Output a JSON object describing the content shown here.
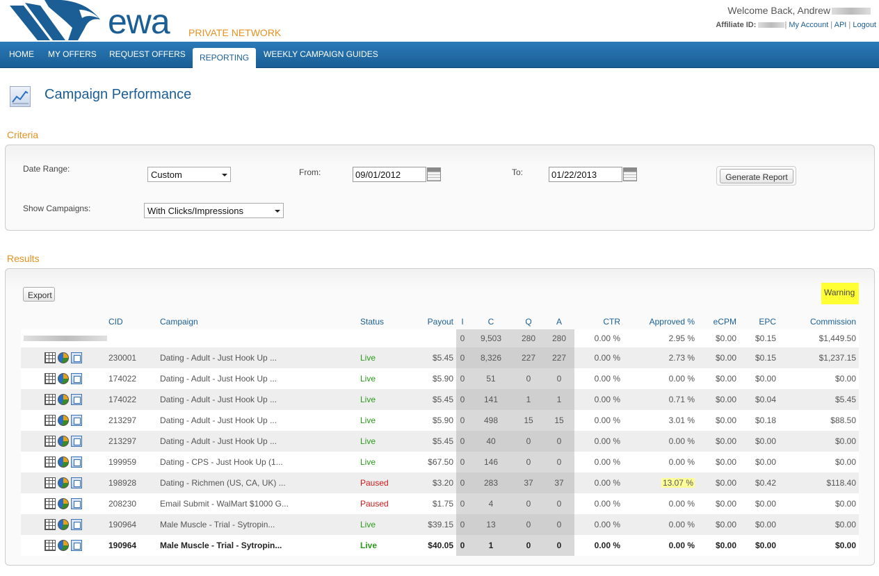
{
  "header": {
    "logo_text": "ewa",
    "logo_sub": "PRIVATE NETWORK",
    "welcome": "Welcome Back, Andrew",
    "affiliate_label": "Affiliate ID:",
    "links": [
      "My Account",
      "API",
      "Logout"
    ]
  },
  "nav": [
    "HOME",
    "MY OFFERS",
    "REQUEST OFFERS",
    "REPORTING",
    "WEEKLY CAMPAIGN GUIDES"
  ],
  "page_title": "Campaign Performance",
  "criteria": {
    "section": "Criteria",
    "date_range_label": "Date Range:",
    "date_range_value": "Custom",
    "from_label": "From:",
    "from_value": "09/01/2012",
    "to_label": "To:",
    "to_value": "01/22/2013",
    "generate_label": "Generate Report",
    "show_label": "Show Campaigns:",
    "show_value": "With Clicks/Impressions"
  },
  "results": {
    "section": "Results",
    "export_label": "Export",
    "warning_label": "Warning",
    "columns": [
      "CID",
      "Campaign",
      "Status",
      "Payout",
      "I",
      "C",
      "Q",
      "A",
      "CTR",
      "Approved %",
      "eCPM",
      "EPC",
      "Commission"
    ],
    "total": {
      "i": "0",
      "c": "9,503",
      "q": "280",
      "a": "280",
      "ctr": "0.00 %",
      "approved": "2.95 %",
      "ecpm": "$0.00",
      "epc": "$0.15",
      "commission": "$1,449.50"
    },
    "rows": [
      {
        "cid": "230001",
        "campaign": "Dating - Adult - Just Hook Up ...",
        "status": "Live",
        "payout": "$5.45",
        "i": "0",
        "c": "8,326",
        "q": "227",
        "a": "227",
        "ctr": "0.00 %",
        "approved": "2.73 %",
        "ecpm": "$0.00",
        "epc": "$0.15",
        "commission": "$1,237.15"
      },
      {
        "cid": "174022",
        "campaign": "Dating - Adult - Just Hook Up ...",
        "status": "Live",
        "payout": "$5.90",
        "i": "0",
        "c": "51",
        "q": "0",
        "a": "0",
        "ctr": "0.00 %",
        "approved": "0.00 %",
        "ecpm": "$0.00",
        "epc": "$0.00",
        "commission": "$0.00"
      },
      {
        "cid": "174022",
        "campaign": "Dating - Adult - Just Hook Up ...",
        "status": "Live",
        "payout": "$5.45",
        "i": "0",
        "c": "141",
        "q": "1",
        "a": "1",
        "ctr": "0.00 %",
        "approved": "0.71 %",
        "ecpm": "$0.00",
        "epc": "$0.04",
        "commission": "$5.45"
      },
      {
        "cid": "213297",
        "campaign": "Dating - Adult - Just Hook Up ...",
        "status": "Live",
        "payout": "$5.90",
        "i": "0",
        "c": "498",
        "q": "15",
        "a": "15",
        "ctr": "0.00 %",
        "approved": "3.01 %",
        "ecpm": "$0.00",
        "epc": "$0.18",
        "commission": "$88.50"
      },
      {
        "cid": "213297",
        "campaign": "Dating - Adult - Just Hook Up ...",
        "status": "Live",
        "payout": "$5.45",
        "i": "0",
        "c": "40",
        "q": "0",
        "a": "0",
        "ctr": "0.00 %",
        "approved": "0.00 %",
        "ecpm": "$0.00",
        "epc": "$0.00",
        "commission": "$0.00"
      },
      {
        "cid": "199959",
        "campaign": "Dating - CPS - Just Hook Up (1...",
        "status": "Live",
        "payout": "$67.50",
        "i": "0",
        "c": "146",
        "q": "0",
        "a": "0",
        "ctr": "0.00 %",
        "approved": "0.00 %",
        "ecpm": "$0.00",
        "epc": "$0.00",
        "commission": "$0.00"
      },
      {
        "cid": "198928",
        "campaign": "Dating - Richmen (US, CA, UK) ...",
        "status": "Paused",
        "payout": "$3.20",
        "i": "0",
        "c": "283",
        "q": "37",
        "a": "37",
        "ctr": "0.00 %",
        "approved": "13.07 %",
        "ecpm": "$0.00",
        "epc": "$0.42",
        "commission": "$118.40",
        "highlight": true
      },
      {
        "cid": "208230",
        "campaign": "Email Submit - WalMart $1000 G...",
        "status": "Paused",
        "payout": "$1.75",
        "i": "0",
        "c": "4",
        "q": "0",
        "a": "0",
        "ctr": "0.00 %",
        "approved": "0.00 %",
        "ecpm": "$0.00",
        "epc": "$0.00",
        "commission": "$0.00"
      },
      {
        "cid": "190964",
        "campaign": "Male Muscle - Trial - Sytropin...",
        "status": "Live",
        "payout": "$39.15",
        "i": "0",
        "c": "13",
        "q": "0",
        "a": "0",
        "ctr": "0.00 %",
        "approved": "0.00 %",
        "ecpm": "$0.00",
        "epc": "$0.00",
        "commission": "$0.00"
      },
      {
        "cid": "190964",
        "campaign": "Male Muscle - Trial - Sytropin...",
        "status": "Live",
        "payout": "$40.05",
        "i": "0",
        "c": "1",
        "q": "0",
        "a": "0",
        "ctr": "0.00 %",
        "approved": "0.00 %",
        "ecpm": "$0.00",
        "epc": "$0.00",
        "commission": "$0.00",
        "bold": true
      }
    ]
  },
  "colors": {
    "brand_blue": "#1a5e95",
    "orange": "#e6901f",
    "live": "#2a9a1a",
    "paused": "#cc1a1a",
    "warning": "#ffff33"
  },
  "icons": [
    "report-grid-icon",
    "pie-chart-icon",
    "document-icon",
    "calendar-icon",
    "line-chart-icon"
  ]
}
